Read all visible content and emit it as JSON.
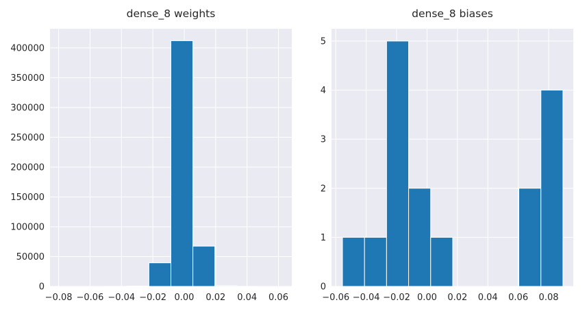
{
  "chart_data": [
    {
      "type": "bar",
      "title": "dense_8 weights",
      "xlabel": "",
      "ylabel": "",
      "xlim": [
        -0.0855,
        0.0685
      ],
      "ylim": [
        0,
        432000
      ],
      "xticks": [
        -0.08,
        -0.06,
        -0.04,
        -0.02,
        0.0,
        0.02,
        0.04,
        0.06
      ],
      "xtick_labels": [
        "−0.08",
        "−0.06",
        "−0.04",
        "−0.02",
        "0.00",
        "0.02",
        "0.04",
        "0.06"
      ],
      "yticks": [
        0,
        50000,
        100000,
        150000,
        200000,
        250000,
        300000,
        350000,
        400000
      ],
      "ytick_labels": [
        "0",
        "50000",
        "100000",
        "150000",
        "200000",
        "250000",
        "300000",
        "350000",
        "400000"
      ],
      "grid": true,
      "bins": [
        {
          "x0": -0.0785,
          "x1": -0.0645,
          "count": 3
        },
        {
          "x0": -0.0645,
          "x1": -0.0505,
          "count": 10
        },
        {
          "x0": -0.0505,
          "x1": -0.0365,
          "count": 60
        },
        {
          "x0": -0.0365,
          "x1": -0.0225,
          "count": 500
        },
        {
          "x0": -0.0225,
          "x1": -0.0085,
          "count": 39500
        },
        {
          "x0": -0.0085,
          "x1": 0.0055,
          "count": 412000
        },
        {
          "x0": 0.0055,
          "x1": 0.0195,
          "count": 67500
        },
        {
          "x0": 0.0195,
          "x1": 0.0335,
          "count": 1200
        },
        {
          "x0": 0.0335,
          "x1": 0.0475,
          "count": 80
        },
        {
          "x0": 0.0475,
          "x1": 0.0615,
          "count": 5
        }
      ]
    },
    {
      "type": "bar",
      "title": "dense_8 biases",
      "xlabel": "",
      "ylabel": "",
      "xlim": [
        -0.0628,
        0.0962
      ],
      "ylim": [
        0,
        5.25
      ],
      "xticks": [
        -0.06,
        -0.04,
        -0.02,
        0.0,
        0.02,
        0.04,
        0.06,
        0.08
      ],
      "xtick_labels": [
        "−0.06",
        "−0.04",
        "−0.02",
        "0.00",
        "0.02",
        "0.04",
        "0.06",
        "0.08"
      ],
      "yticks": [
        0,
        1,
        2,
        3,
        4,
        5
      ],
      "ytick_labels": [
        "0",
        "1",
        "2",
        "3",
        "4",
        "5"
      ],
      "grid": true,
      "bins": [
        {
          "x0": -0.0556,
          "x1": -0.0411,
          "count": 1
        },
        {
          "x0": -0.0411,
          "x1": -0.0266,
          "count": 1
        },
        {
          "x0": -0.0266,
          "x1": -0.0121,
          "count": 5
        },
        {
          "x0": -0.0121,
          "x1": 0.0024,
          "count": 2
        },
        {
          "x0": 0.0024,
          "x1": 0.0169,
          "count": 1
        },
        {
          "x0": 0.0169,
          "x1": 0.0314,
          "count": 0
        },
        {
          "x0": 0.0314,
          "x1": 0.0459,
          "count": 0
        },
        {
          "x0": 0.0459,
          "x1": 0.0604,
          "count": 0
        },
        {
          "x0": 0.0604,
          "x1": 0.0749,
          "count": 2
        },
        {
          "x0": 0.0749,
          "x1": 0.0894,
          "count": 4
        }
      ]
    }
  ]
}
